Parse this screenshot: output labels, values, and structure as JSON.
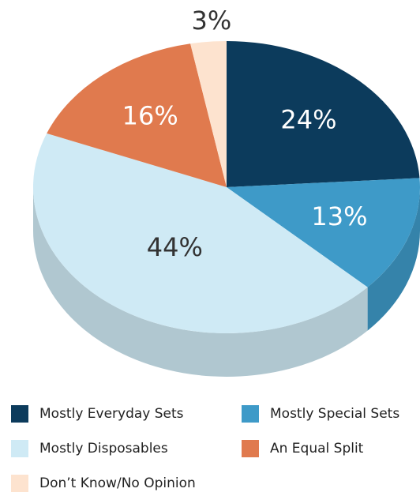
{
  "chart_data": {
    "type": "pie3d",
    "categories": [
      "Mostly Everyday Sets",
      "Mostly Special Sets",
      "Mostly Disposables",
      "An Equal Split",
      "Don’t Know/No Opinion"
    ],
    "values": [
      24,
      13,
      44,
      16,
      3
    ],
    "value_labels": [
      "24%",
      "13%",
      "44%",
      "16%",
      "3%"
    ],
    "colors": [
      "#0c3b5c",
      "#3e9ac8",
      "#cfeaf5",
      "#e07a4e",
      "#fde3cf"
    ],
    "legend": "bottom"
  }
}
